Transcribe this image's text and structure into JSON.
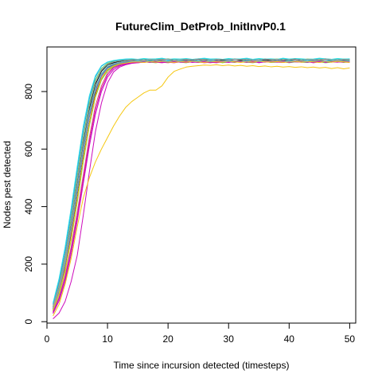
{
  "chart_data": {
    "type": "line",
    "title": "FutureClim_DetProb_InitInvP0.1",
    "xlabel": "Time since incursion detected (timesteps)",
    "ylabel": "Nodes pest detected",
    "xlim": [
      0,
      51
    ],
    "ylim": [
      -5,
      955
    ],
    "xticks": [
      0,
      10,
      20,
      30,
      40,
      50
    ],
    "yticks": [
      0,
      200,
      400,
      600,
      800
    ],
    "grid": false,
    "legend": "none",
    "x": [
      1,
      2,
      3,
      4,
      5,
      6,
      7,
      8,
      9,
      10,
      11,
      12,
      13,
      14,
      15,
      16,
      17,
      18,
      19,
      20,
      21,
      22,
      23,
      24,
      25,
      26,
      27,
      28,
      29,
      30,
      31,
      32,
      33,
      34,
      35,
      36,
      37,
      38,
      39,
      40,
      41,
      42,
      43,
      44,
      45,
      46,
      47,
      48,
      49,
      50
    ],
    "series": [
      {
        "color": "#000000",
        "values": [
          45,
          110,
          200,
          320,
          460,
          600,
          720,
          810,
          860,
          885,
          895,
          900,
          902,
          905,
          906,
          904,
          907,
          908,
          906,
          905,
          907,
          909,
          906,
          905,
          908,
          906,
          907,
          905,
          909,
          907,
          906,
          908,
          905,
          907,
          906,
          909,
          907,
          905,
          906,
          908,
          907,
          906,
          905,
          909,
          907,
          906,
          908,
          907,
          905,
          906
        ]
      },
      {
        "color": "#000000",
        "values": [
          40,
          100,
          185,
          300,
          430,
          570,
          690,
          790,
          845,
          875,
          890,
          897,
          900,
          903,
          902,
          905,
          903,
          906,
          904,
          902,
          905,
          903,
          906,
          904,
          903,
          905,
          902,
          906,
          904,
          903,
          905,
          904,
          902,
          906,
          903,
          905,
          904,
          906,
          903,
          902,
          905,
          904,
          903,
          906,
          905,
          903,
          904,
          906,
          905,
          903
        ]
      },
      {
        "color": "#000000",
        "values": [
          50,
          120,
          215,
          340,
          480,
          620,
          740,
          825,
          870,
          893,
          900,
          905,
          908,
          909,
          910,
          908,
          911,
          909,
          910,
          912,
          908,
          910,
          911,
          909,
          912,
          910,
          908,
          911,
          910,
          909,
          912,
          910,
          911,
          909,
          908,
          912,
          910,
          911,
          909,
          910,
          912,
          908,
          911,
          910,
          909,
          912,
          910,
          908,
          911,
          910
        ]
      },
      {
        "color": "#df536b",
        "values": [
          35,
          85,
          160,
          260,
          380,
          510,
          640,
          750,
          820,
          865,
          885,
          893,
          898,
          900,
          902,
          903,
          901,
          904,
          902,
          900,
          903,
          905,
          901,
          903,
          904,
          902,
          900,
          903,
          905,
          902,
          904,
          903,
          901,
          905,
          903,
          902,
          904,
          903,
          901,
          905,
          904,
          902,
          903,
          905,
          901,
          904,
          903,
          902,
          905,
          903
        ]
      },
      {
        "color": "#df536b",
        "values": [
          42,
          105,
          195,
          310,
          450,
          590,
          710,
          800,
          852,
          880,
          892,
          898,
          901,
          903,
          905,
          904,
          906,
          903,
          905,
          907,
          904,
          906,
          905,
          903,
          906,
          904,
          907,
          905,
          903,
          906,
          905,
          904,
          907,
          903,
          905,
          906,
          904,
          905,
          907,
          903,
          906,
          904,
          905,
          907,
          904,
          906,
          903,
          905,
          906,
          904
        ]
      },
      {
        "color": "#61d04f",
        "values": [
          55,
          130,
          230,
          360,
          505,
          645,
          760,
          840,
          880,
          898,
          905,
          908,
          910,
          911,
          912,
          910,
          913,
          911,
          912,
          914,
          910,
          912,
          913,
          911,
          914,
          912,
          910,
          913,
          912,
          911,
          914,
          912,
          913,
          911,
          910,
          914,
          912,
          913,
          911,
          912,
          914,
          910,
          913,
          912,
          911,
          914,
          912,
          910,
          913,
          912
        ]
      },
      {
        "color": "#61d04f",
        "values": [
          38,
          95,
          175,
          285,
          415,
          555,
          680,
          780,
          840,
          872,
          887,
          895,
          898,
          901,
          900,
          903,
          902,
          900,
          904,
          901,
          903,
          902,
          900,
          904,
          901,
          903,
          902,
          904,
          900,
          903,
          901,
          904,
          902,
          900,
          903,
          904,
          901,
          902,
          904,
          900,
          903,
          902,
          901,
          904,
          903,
          900,
          902,
          904,
          901,
          903
        ]
      },
      {
        "color": "#2297e6",
        "values": [
          60,
          140,
          245,
          380,
          525,
          665,
          775,
          850,
          888,
          902,
          907,
          910,
          912,
          913,
          911,
          914,
          912,
          913,
          915,
          911,
          913,
          912,
          914,
          911,
          913,
          915,
          912,
          913,
          911,
          914,
          912,
          913,
          915,
          911,
          914,
          912,
          913,
          911,
          915,
          912,
          914,
          913,
          911,
          912,
          915,
          913,
          911,
          914,
          912,
          913
        ]
      },
      {
        "color": "#2297e6",
        "values": [
          44,
          108,
          200,
          318,
          455,
          595,
          715,
          805,
          856,
          882,
          893,
          899,
          902,
          904,
          903,
          906,
          904,
          902,
          905,
          907,
          903,
          905,
          904,
          906,
          903,
          905,
          907,
          904,
          902,
          905,
          906,
          903,
          905,
          904,
          906,
          902,
          905,
          904,
          906,
          903,
          905,
          904,
          902,
          906,
          905,
          903,
          904,
          906,
          905,
          903
        ]
      },
      {
        "color": "#28e2e5",
        "values": [
          65,
          150,
          260,
          395,
          540,
          680,
          785,
          855,
          890,
          903,
          908,
          911,
          913,
          914,
          912,
          915,
          913,
          914,
          916,
          912,
          914,
          913,
          915,
          912,
          914,
          916,
          913,
          914,
          912,
          915,
          913,
          914,
          916,
          912,
          915,
          913,
          914,
          912,
          916,
          913,
          915,
          914,
          912,
          913,
          916,
          914,
          912,
          915,
          913,
          914
        ]
      },
      {
        "color": "#28e2e5",
        "values": [
          48,
          115,
          210,
          330,
          470,
          610,
          730,
          815,
          862,
          888,
          897,
          902,
          905,
          906,
          908,
          906,
          909,
          907,
          905,
          908,
          906,
          909,
          907,
          906,
          908,
          905,
          909,
          907,
          906,
          908,
          907,
          905,
          909,
          906,
          908,
          907,
          906,
          909,
          905,
          908,
          907,
          906,
          909,
          908,
          905,
          907,
          909,
          906,
          908,
          907
        ]
      },
      {
        "color": "#cd0bbc",
        "values": [
          10,
          30,
          70,
          140,
          230,
          370,
          520,
          660,
          760,
          830,
          868,
          885,
          893,
          898,
          900,
          902,
          903,
          901,
          904,
          902,
          900,
          903,
          905,
          901,
          903,
          904,
          902,
          900,
          903,
          905,
          902,
          904,
          903,
          901,
          905,
          903,
          902,
          904,
          903,
          901,
          905,
          904,
          902,
          903,
          905,
          901,
          904,
          903,
          902,
          905
        ]
      },
      {
        "color": "#cd0bbc",
        "values": [
          28,
          72,
          140,
          235,
          350,
          480,
          610,
          720,
          800,
          850,
          876,
          889,
          895,
          899,
          901,
          903,
          902,
          904,
          901,
          903,
          905,
          902,
          904,
          903,
          901,
          905,
          903,
          902,
          904,
          906,
          902,
          903,
          905,
          904,
          902,
          905,
          903,
          904,
          906,
          902,
          904,
          903,
          905,
          902,
          904,
          906,
          903,
          902,
          905,
          904
        ]
      },
      {
        "color": "#cd0bbc",
        "values": [
          32,
          80,
          150,
          250,
          365,
          495,
          625,
          735,
          810,
          858,
          882,
          892,
          897,
          900,
          902,
          901,
          904,
          902,
          900,
          903,
          905,
          902,
          901,
          904,
          903,
          900,
          902,
          905,
          903,
          901,
          904,
          902,
          903,
          905,
          900,
          903,
          904,
          902,
          901,
          905,
          903,
          902,
          904,
          900,
          903,
          905,
          902,
          904,
          903,
          901
        ]
      },
      {
        "color": "#f5c710",
        "values": [
          20,
          60,
          130,
          220,
          330,
          430,
          500,
          555,
          600,
          640,
          680,
          715,
          745,
          765,
          780,
          795,
          805,
          805,
          820,
          850,
          870,
          878,
          885,
          888,
          890,
          892,
          891,
          893,
          890,
          892,
          889,
          891,
          888,
          890,
          887,
          889,
          886,
          888,
          885,
          887,
          884,
          886,
          883,
          885,
          882,
          884,
          880,
          883,
          879,
          882
        ]
      },
      {
        "color": "#f5c710",
        "values": [
          40,
          98,
          180,
          292,
          425,
          565,
          688,
          785,
          845,
          876,
          889,
          896,
          899,
          902,
          903,
          901,
          904,
          902,
          905,
          903,
          901,
          904,
          902,
          905,
          903,
          901,
          904,
          903,
          902,
          905,
          903,
          901,
          904,
          902,
          905,
          903,
          902,
          904,
          901,
          903,
          905,
          902,
          904,
          903,
          901,
          904,
          902,
          905,
          903,
          901
        ]
      },
      {
        "color": "#9e9e9e",
        "values": [
          46,
          112,
          205,
          325,
          465,
          605,
          725,
          812,
          860,
          886,
          896,
          901,
          904,
          906,
          905,
          907,
          905,
          908,
          906,
          904,
          907,
          905,
          908,
          906,
          905,
          907,
          904,
          908,
          906,
          905,
          907,
          906,
          904,
          908,
          905,
          907,
          906,
          908,
          905,
          904,
          907,
          906,
          905,
          908,
          907,
          905,
          906,
          908,
          907,
          905
        ]
      },
      {
        "color": "#9e9e9e",
        "values": [
          52,
          125,
          222,
          350,
          492,
          632,
          750,
          832,
          875,
          895,
          903,
          907,
          909,
          910,
          911,
          909,
          912,
          910,
          911,
          913,
          909,
          911,
          912,
          910,
          913,
          911,
          909,
          912,
          911,
          910,
          913,
          911,
          912,
          910,
          909,
          913,
          911,
          912,
          910,
          911,
          913,
          909,
          912,
          911,
          910,
          913,
          911,
          909,
          912,
          911
        ]
      }
    ]
  }
}
